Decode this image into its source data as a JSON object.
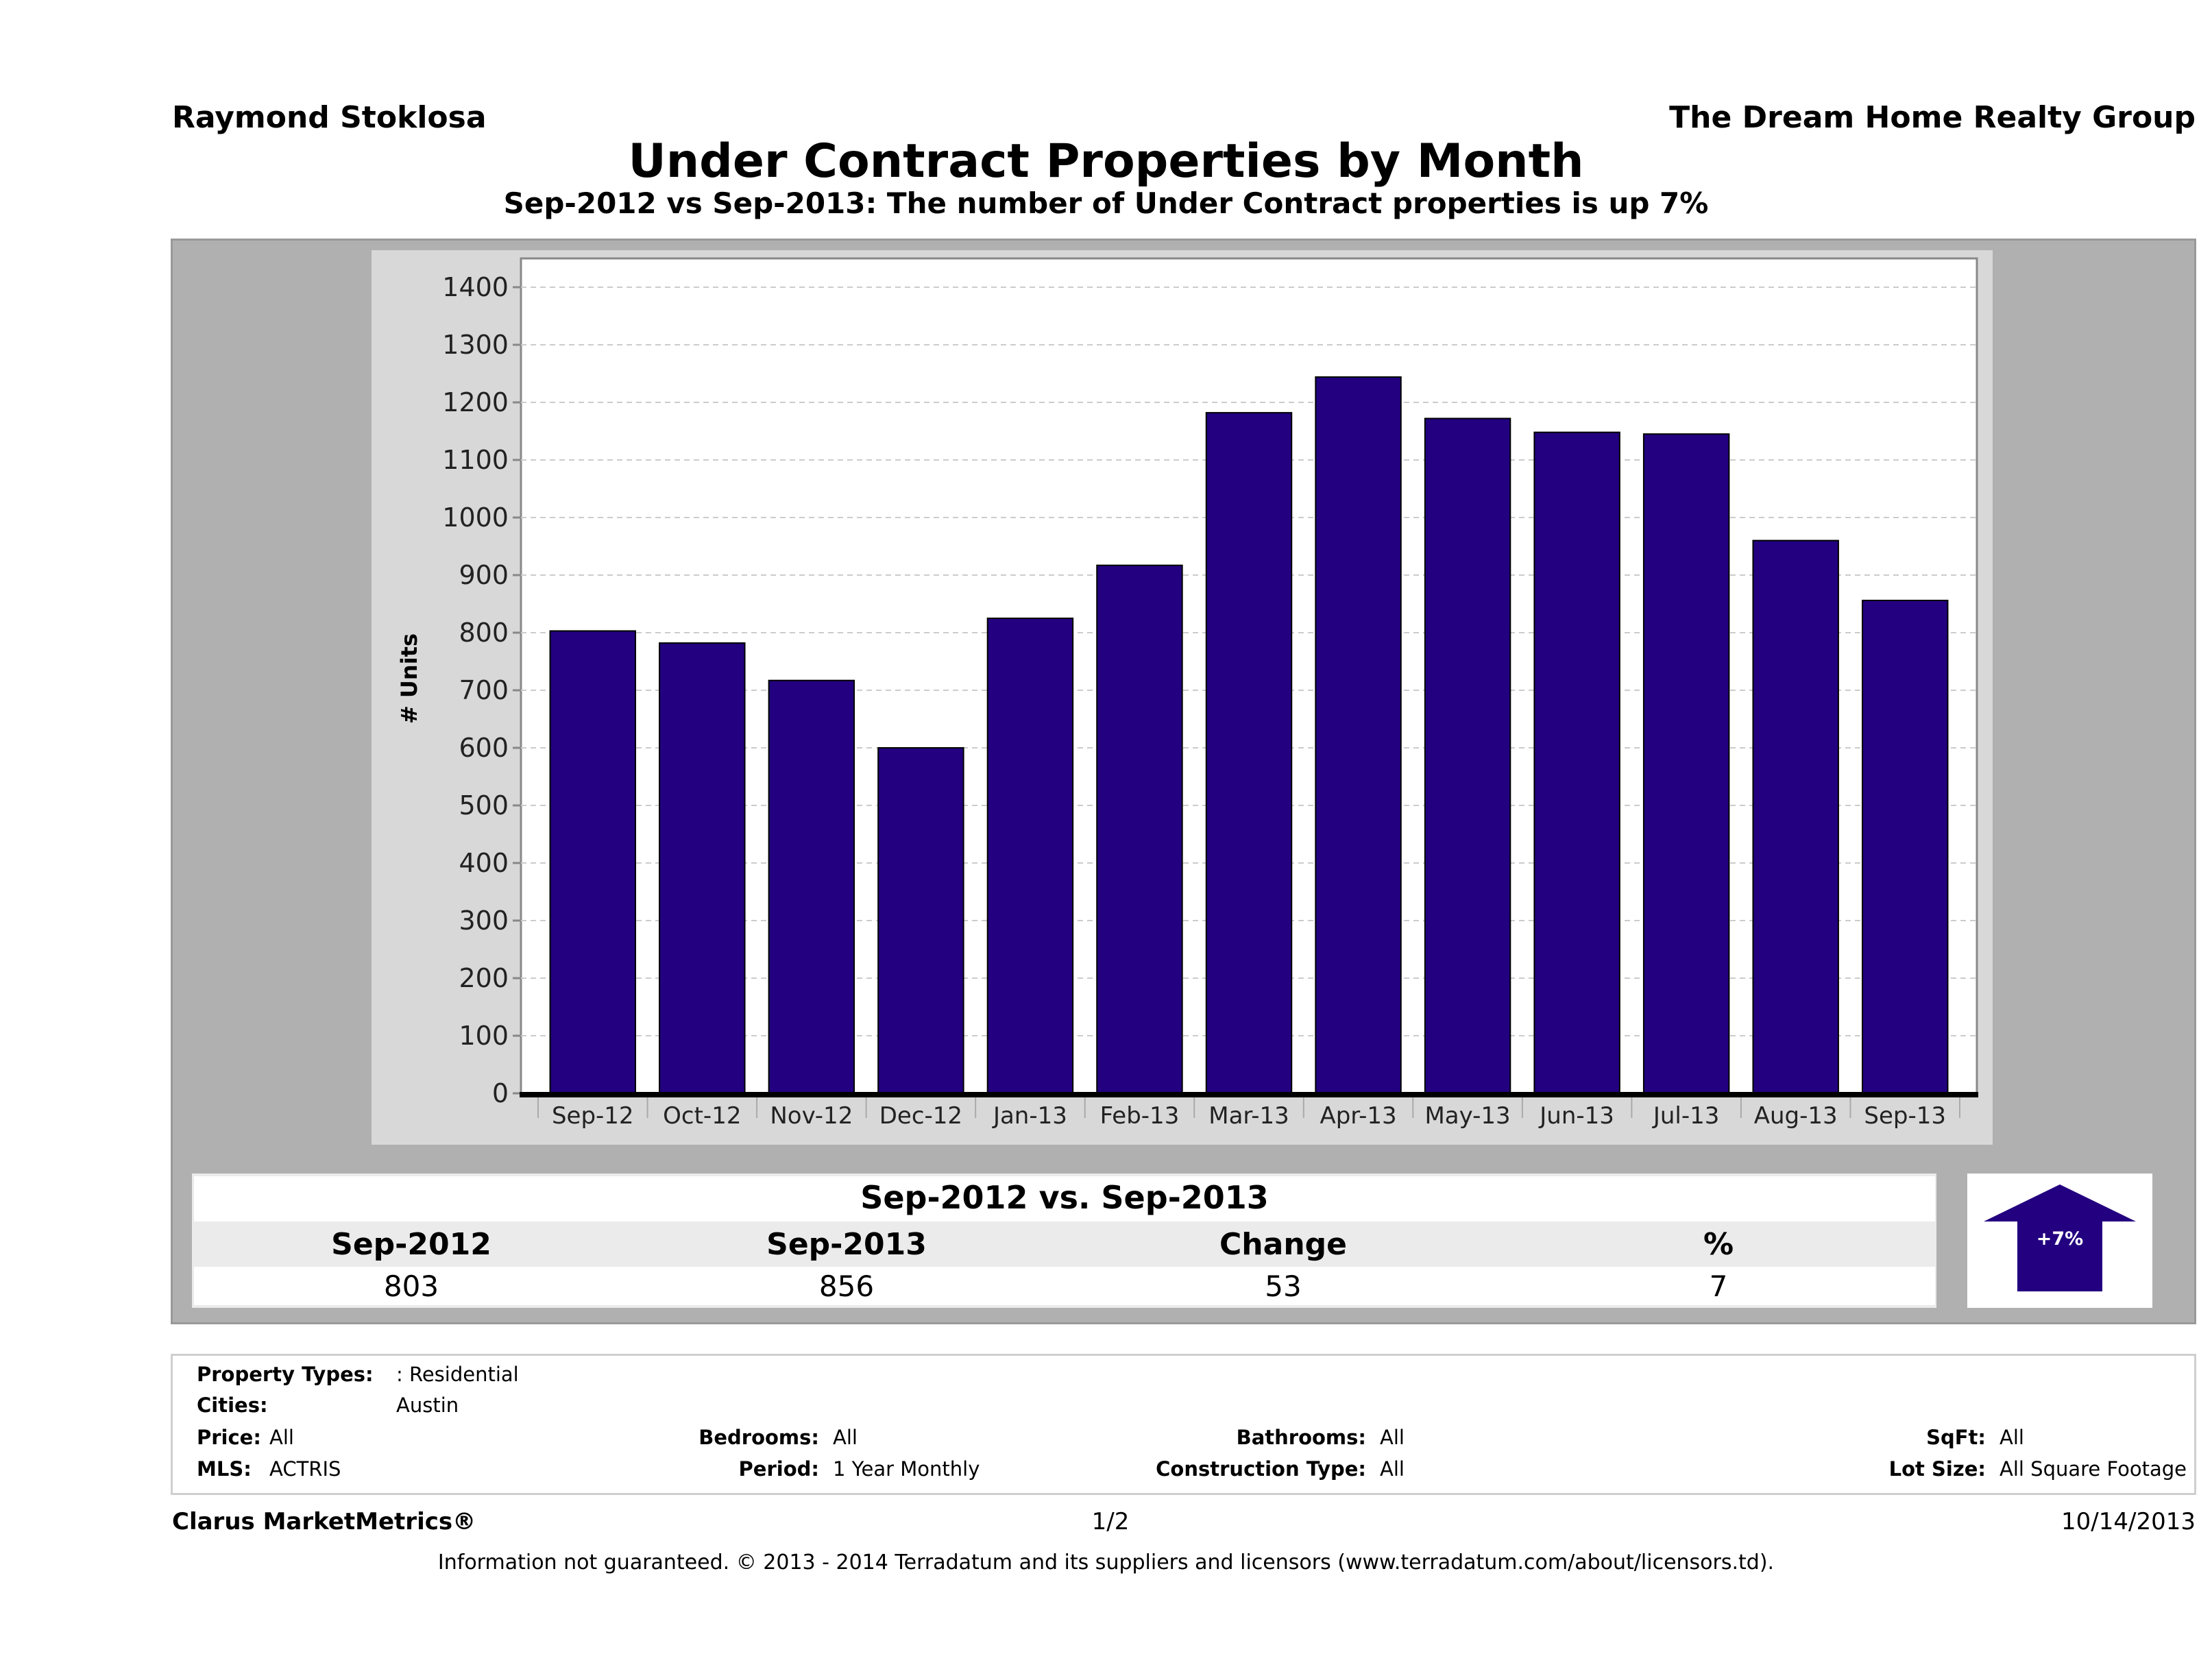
{
  "header": {
    "agent": "Raymond Stoklosa",
    "company": "The Dream Home Realty Group"
  },
  "chart_data": {
    "type": "bar",
    "title": "Under Contract Properties by Month",
    "subtitle": "Sep-2012 vs Sep-2013: The number of Under Contract  properties is up 7%",
    "ylabel": "# Units",
    "xlabel": "",
    "ylim": [
      0,
      1450
    ],
    "yticks": [
      0,
      100,
      200,
      300,
      400,
      500,
      600,
      700,
      800,
      900,
      1000,
      1100,
      1200,
      1300,
      1400
    ],
    "categories": [
      "Sep-12",
      "Oct-12",
      "Nov-12",
      "Dec-12",
      "Jan-13",
      "Feb-13",
      "Mar-13",
      "Apr-13",
      "May-13",
      "Jun-13",
      "Jul-13",
      "Aug-13",
      "Sep-13"
    ],
    "values": [
      803,
      782,
      717,
      600,
      825,
      917,
      1182,
      1244,
      1172,
      1148,
      1145,
      960,
      856
    ],
    "bar_color": "#230080",
    "grid": true,
    "legend": "none"
  },
  "comparison": {
    "title": "Sep-2012 vs. Sep-2013",
    "headers": [
      "Sep-2012",
      "Sep-2013",
      "Change",
      "%"
    ],
    "values": [
      "803",
      "856",
      "53",
      "7"
    ],
    "badge": "+7%",
    "arrow_icon": "up-arrow-icon",
    "arrow_color": "#230080"
  },
  "filters": {
    "property_types_label": "Property Types:",
    "property_types_value": ": Residential",
    "cities_label": "Cities:",
    "cities_value": "Austin",
    "price_label": "Price:",
    "price_value": "All",
    "mls_label": "MLS:",
    "mls_value": "ACTRIS",
    "bedrooms_label": "Bedrooms:",
    "bedrooms_value": "All",
    "period_label": "Period:",
    "period_value": "1 Year Monthly",
    "bathrooms_label": "Bathrooms:",
    "bathrooms_value": "All",
    "construction_label": "Construction Type:",
    "construction_value": "All",
    "sqft_label": "SqFt:",
    "sqft_value": "All",
    "lot_label": "Lot Size:",
    "lot_value": "All Square Footage"
  },
  "footer": {
    "brand": "Clarus MarketMetrics®",
    "page": "1/2",
    "date": "10/14/2013",
    "disclaimer": "Information not guaranteed. © 2013 - 2014 Terradatum and its suppliers and licensors (www.terradatum.com/about/licensors.td)."
  }
}
